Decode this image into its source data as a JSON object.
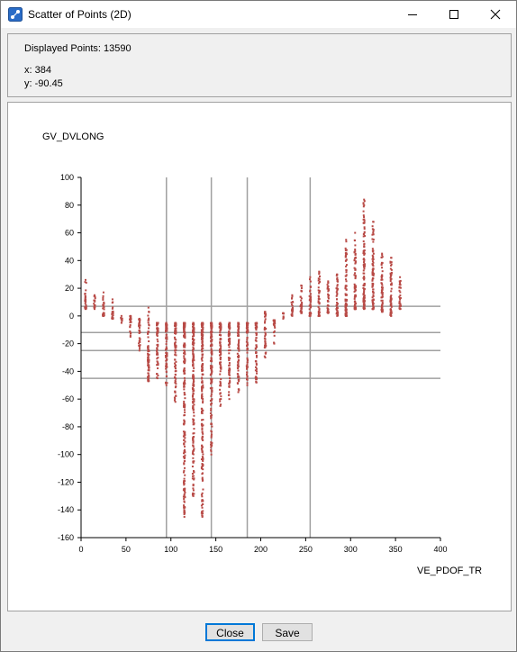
{
  "window": {
    "title": "Scatter of Points (2D)"
  },
  "info": {
    "displayed_label": "Displayed Points: 13590",
    "x_label": "x: 384",
    "y_label": "y: -90.45"
  },
  "buttons": {
    "close": "Close",
    "save": "Save"
  },
  "colors": {
    "points": "#b84a46",
    "gridlines": "#a0a0a0"
  },
  "chart_data": {
    "type": "scatter",
    "title": "",
    "xlabel": "VE_PDOF_TR",
    "ylabel": "GV_DVLONG",
    "xlim": [
      0,
      400
    ],
    "ylim": [
      -160,
      100
    ],
    "x_ticks": [
      0,
      50,
      100,
      150,
      200,
      250,
      300,
      350,
      400
    ],
    "y_ticks": [
      100,
      80,
      60,
      40,
      20,
      0,
      -20,
      -40,
      -60,
      -80,
      -100,
      -120,
      -140,
      -160
    ],
    "reference_lines": {
      "x": [
        95,
        145,
        185,
        255
      ],
      "y": [
        7,
        -12,
        -25,
        -45
      ]
    },
    "series": [
      {
        "points_by_x": [
          {
            "x": 5,
            "ymin": 5,
            "ymax": 26
          },
          {
            "x": 15,
            "ymin": 5,
            "ymax": 15
          },
          {
            "x": 25,
            "ymin": 0,
            "ymax": 17
          },
          {
            "x": 35,
            "ymin": -2,
            "ymax": 12
          },
          {
            "x": 45,
            "ymin": -5,
            "ymax": 0
          },
          {
            "x": 55,
            "ymin": -15,
            "ymax": 0
          },
          {
            "x": 65,
            "ymin": -25,
            "ymax": -2
          },
          {
            "x": 75,
            "ymin": -47,
            "ymax": 6
          },
          {
            "x": 85,
            "ymin": -45,
            "ymax": -5
          },
          {
            "x": 95,
            "ymin": -50,
            "ymax": -5
          },
          {
            "x": 105,
            "ymin": -62,
            "ymax": -5
          },
          {
            "x": 115,
            "ymin": -145,
            "ymax": -5
          },
          {
            "x": 125,
            "ymin": -130,
            "ymax": -5
          },
          {
            "x": 135,
            "ymin": -145,
            "ymax": -5
          },
          {
            "x": 145,
            "ymin": -100,
            "ymax": -5
          },
          {
            "x": 155,
            "ymin": -65,
            "ymax": -5
          },
          {
            "x": 165,
            "ymin": -60,
            "ymax": -5
          },
          {
            "x": 175,
            "ymin": -55,
            "ymax": -5
          },
          {
            "x": 185,
            "ymin": -50,
            "ymax": -5
          },
          {
            "x": 195,
            "ymin": -48,
            "ymax": -5
          },
          {
            "x": 205,
            "ymin": -30,
            "ymax": 3
          },
          {
            "x": 215,
            "ymin": -20,
            "ymax": -3
          },
          {
            "x": 225,
            "ymin": -2,
            "ymax": 2
          },
          {
            "x": 235,
            "ymin": 0,
            "ymax": 15
          },
          {
            "x": 245,
            "ymin": 2,
            "ymax": 22
          },
          {
            "x": 255,
            "ymin": 0,
            "ymax": 28
          },
          {
            "x": 265,
            "ymin": 0,
            "ymax": 32
          },
          {
            "x": 275,
            "ymin": 2,
            "ymax": 25
          },
          {
            "x": 285,
            "ymin": 0,
            "ymax": 30
          },
          {
            "x": 295,
            "ymin": 0,
            "ymax": 55
          },
          {
            "x": 305,
            "ymin": 5,
            "ymax": 60
          },
          {
            "x": 315,
            "ymin": 5,
            "ymax": 84
          },
          {
            "x": 325,
            "ymin": 5,
            "ymax": 68
          },
          {
            "x": 335,
            "ymin": 3,
            "ymax": 45
          },
          {
            "x": 345,
            "ymin": 0,
            "ymax": 42
          },
          {
            "x": 355,
            "ymin": 5,
            "ymax": 28
          }
        ]
      }
    ]
  }
}
